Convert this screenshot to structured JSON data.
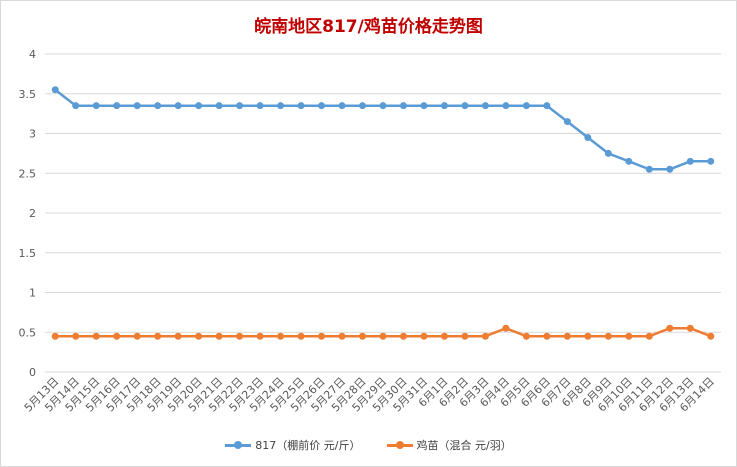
{
  "chart_data": {
    "type": "line",
    "title": "皖南地区817/鸡苗价格走势图",
    "categories": [
      "5月13日",
      "5月14日",
      "5月15日",
      "5月16日",
      "5月17日",
      "5月18日",
      "5月19日",
      "5月20日",
      "5月21日",
      "5月22日",
      "5月23日",
      "5月24日",
      "5月25日",
      "5月26日",
      "5月27日",
      "5月28日",
      "5月29日",
      "5月30日",
      "5月31日",
      "6月1日",
      "6月2日",
      "6月3日",
      "6月4日",
      "6月5日",
      "6月6日",
      "6月7日",
      "6月8日",
      "6月9日",
      "6月10日",
      "6月11日",
      "6月12日",
      "6月13日",
      "6月14日"
    ],
    "series": [
      {
        "name": "817（棚前价 元/斤）",
        "color": "#5b9bd5",
        "values": [
          3.55,
          3.35,
          3.35,
          3.35,
          3.35,
          3.35,
          3.35,
          3.35,
          3.35,
          3.35,
          3.35,
          3.35,
          3.35,
          3.35,
          3.35,
          3.35,
          3.35,
          3.35,
          3.35,
          3.35,
          3.35,
          3.35,
          3.35,
          3.35,
          3.35,
          3.15,
          2.95,
          2.75,
          2.65,
          2.55,
          2.55,
          2.65,
          2.65
        ]
      },
      {
        "name": "鸡苗（混合 元/羽）",
        "color": "#ed7d31",
        "values": [
          0.45,
          0.45,
          0.45,
          0.45,
          0.45,
          0.45,
          0.45,
          0.45,
          0.45,
          0.45,
          0.45,
          0.45,
          0.45,
          0.45,
          0.45,
          0.45,
          0.45,
          0.45,
          0.45,
          0.45,
          0.45,
          0.45,
          0.55,
          0.45,
          0.45,
          0.45,
          0.45,
          0.45,
          0.45,
          0.45,
          0.55,
          0.55,
          0.45
        ]
      }
    ],
    "ylim": [
      0,
      4
    ],
    "yticks": [
      "0",
      "0.5",
      "1",
      "1.5",
      "2",
      "2.5",
      "3",
      "3.5",
      "4"
    ],
    "grid": true,
    "legend_position": "bottom",
    "xlabel": "",
    "ylabel": ""
  }
}
